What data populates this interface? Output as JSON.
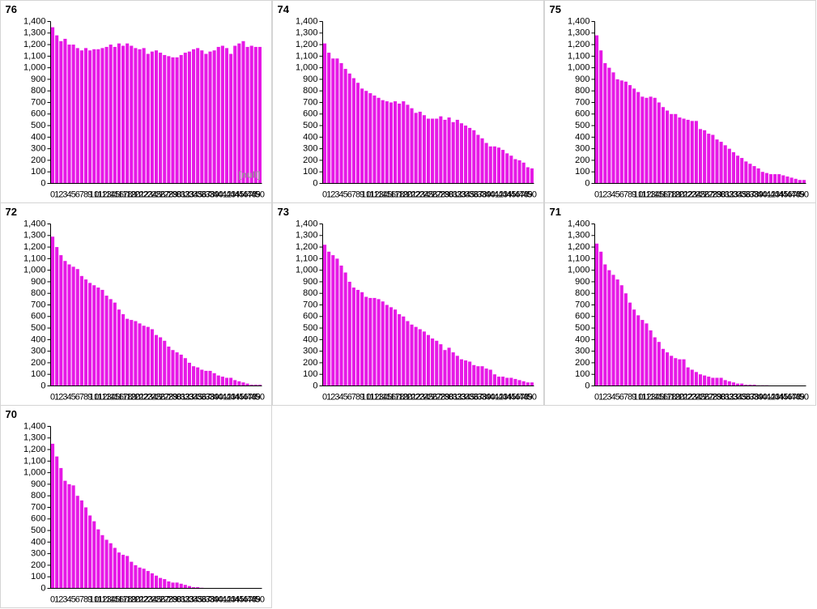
{
  "chart_data": [
    {
      "type": "bar",
      "title": "76",
      "annotation": "[null]",
      "color": "#e619e6",
      "categories": [
        0,
        1,
        2,
        3,
        4,
        5,
        6,
        7,
        8,
        9,
        10,
        11,
        12,
        13,
        14,
        15,
        16,
        17,
        18,
        19,
        20,
        21,
        22,
        23,
        24,
        25,
        26,
        27,
        28,
        29,
        30,
        31,
        32,
        33,
        34,
        35,
        36,
        37,
        38,
        39,
        40,
        41,
        42,
        43,
        44,
        45,
        46,
        47,
        48,
        49,
        50
      ],
      "values": [
        1350,
        1280,
        1230,
        1250,
        1200,
        1200,
        1170,
        1150,
        1170,
        1150,
        1160,
        1160,
        1170,
        1180,
        1200,
        1180,
        1210,
        1190,
        1210,
        1190,
        1170,
        1160,
        1170,
        1120,
        1140,
        1150,
        1130,
        1110,
        1100,
        1090,
        1090,
        1110,
        1130,
        1140,
        1160,
        1170,
        1150,
        1120,
        1140,
        1150,
        1180,
        1190,
        1170,
        1120,
        1190,
        1210,
        1230,
        1180,
        1190,
        1180,
        1180
      ],
      "ylim": [
        0,
        1400
      ],
      "yticks": [
        0,
        100,
        200,
        300,
        400,
        500,
        600,
        700,
        800,
        900,
        {
          "value": 1000,
          "label": "1,000"
        },
        {
          "value": 1100,
          "label": "1,100"
        },
        {
          "value": 1200,
          "label": "1,200"
        },
        {
          "value": 1300,
          "label": "1,300"
        },
        {
          "value": 1400,
          "label": "1,400"
        }
      ]
    },
    {
      "type": "bar",
      "title": "74",
      "color": "#e619e6",
      "categories": [
        0,
        1,
        2,
        3,
        4,
        5,
        6,
        7,
        8,
        9,
        10,
        11,
        12,
        13,
        14,
        15,
        16,
        17,
        18,
        19,
        20,
        21,
        22,
        23,
        24,
        25,
        26,
        27,
        28,
        29,
        30,
        31,
        32,
        33,
        34,
        35,
        36,
        37,
        38,
        39,
        40,
        41,
        42,
        43,
        44,
        45,
        46,
        47,
        48,
        49,
        50
      ],
      "values": [
        1210,
        1130,
        1080,
        1080,
        1040,
        990,
        950,
        910,
        870,
        820,
        800,
        780,
        760,
        740,
        720,
        710,
        700,
        710,
        690,
        710,
        680,
        650,
        610,
        620,
        590,
        560,
        560,
        560,
        580,
        550,
        570,
        530,
        550,
        520,
        500,
        480,
        460,
        420,
        390,
        350,
        320,
        320,
        310,
        290,
        260,
        240,
        210,
        200,
        180,
        140,
        130
      ],
      "ylim": [
        0,
        1400
      ],
      "yticks": [
        0,
        100,
        200,
        300,
        400,
        500,
        600,
        700,
        800,
        900,
        {
          "value": 1000,
          "label": "1,000"
        },
        {
          "value": 1100,
          "label": "1,100"
        },
        {
          "value": 1200,
          "label": "1,200"
        },
        {
          "value": 1300,
          "label": "1,300"
        },
        {
          "value": 1400,
          "label": "1,400"
        }
      ]
    },
    {
      "type": "bar",
      "title": "75",
      "color": "#e619e6",
      "categories": [
        0,
        1,
        2,
        3,
        4,
        5,
        6,
        7,
        8,
        9,
        10,
        11,
        12,
        13,
        14,
        15,
        16,
        17,
        18,
        19,
        20,
        21,
        22,
        23,
        24,
        25,
        26,
        27,
        28,
        29,
        30,
        31,
        32,
        33,
        34,
        35,
        36,
        37,
        38,
        39,
        40,
        41,
        42,
        43,
        44,
        45,
        46,
        47,
        48,
        49,
        50
      ],
      "values": [
        1280,
        1150,
        1040,
        1000,
        960,
        900,
        890,
        880,
        850,
        820,
        790,
        750,
        740,
        750,
        740,
        700,
        660,
        630,
        600,
        600,
        570,
        560,
        550,
        540,
        540,
        470,
        460,
        430,
        420,
        380,
        360,
        330,
        300,
        270,
        240,
        220,
        190,
        170,
        150,
        130,
        100,
        90,
        80,
        80,
        80,
        70,
        60,
        50,
        40,
        30,
        30
      ],
      "ylim": [
        0,
        1400
      ],
      "yticks": [
        0,
        100,
        200,
        300,
        400,
        500,
        600,
        700,
        800,
        900,
        {
          "value": 1000,
          "label": "1,000"
        },
        {
          "value": 1100,
          "label": "1,100"
        },
        {
          "value": 1200,
          "label": "1,200"
        },
        {
          "value": 1300,
          "label": "1,300"
        },
        {
          "value": 1400,
          "label": "1,400"
        }
      ]
    },
    {
      "type": "bar",
      "title": "72",
      "color": "#e619e6",
      "categories": [
        0,
        1,
        2,
        3,
        4,
        5,
        6,
        7,
        8,
        9,
        10,
        11,
        12,
        13,
        14,
        15,
        16,
        17,
        18,
        19,
        20,
        21,
        22,
        23,
        24,
        25,
        26,
        27,
        28,
        29,
        30,
        31,
        32,
        33,
        34,
        35,
        36,
        37,
        38,
        39,
        40,
        41,
        42,
        43,
        44,
        45,
        46,
        47,
        48,
        49,
        50
      ],
      "values": [
        1290,
        1200,
        1130,
        1080,
        1050,
        1030,
        1010,
        950,
        920,
        890,
        870,
        850,
        830,
        780,
        750,
        720,
        660,
        620,
        580,
        570,
        560,
        540,
        520,
        510,
        490,
        440,
        420,
        390,
        340,
        310,
        290,
        270,
        240,
        200,
        170,
        160,
        140,
        130,
        130,
        110,
        90,
        80,
        70,
        70,
        50,
        40,
        30,
        20,
        10,
        10,
        10
      ],
      "ylim": [
        0,
        1400
      ],
      "yticks": [
        0,
        100,
        200,
        300,
        400,
        500,
        600,
        700,
        800,
        900,
        {
          "value": 1000,
          "label": "1,000"
        },
        {
          "value": 1100,
          "label": "1,100"
        },
        {
          "value": 1200,
          "label": "1,200"
        },
        {
          "value": 1300,
          "label": "1,300"
        },
        {
          "value": 1400,
          "label": "1,400"
        }
      ]
    },
    {
      "type": "bar",
      "title": "73",
      "color": "#e619e6",
      "categories": [
        0,
        1,
        2,
        3,
        4,
        5,
        6,
        7,
        8,
        9,
        10,
        11,
        12,
        13,
        14,
        15,
        16,
        17,
        18,
        19,
        20,
        21,
        22,
        23,
        24,
        25,
        26,
        27,
        28,
        29,
        30,
        31,
        32,
        33,
        34,
        35,
        36,
        37,
        38,
        39,
        40,
        41,
        42,
        43,
        44,
        45,
        46,
        47,
        48,
        49,
        50
      ],
      "values": [
        1220,
        1160,
        1130,
        1100,
        1040,
        980,
        900,
        850,
        830,
        810,
        770,
        760,
        760,
        750,
        730,
        700,
        680,
        660,
        620,
        600,
        560,
        530,
        510,
        490,
        470,
        440,
        410,
        390,
        360,
        310,
        330,
        290,
        260,
        230,
        220,
        210,
        180,
        170,
        170,
        150,
        140,
        100,
        80,
        80,
        70,
        70,
        60,
        50,
        40,
        30,
        30
      ],
      "ylim": [
        0,
        1400
      ],
      "yticks": [
        0,
        100,
        200,
        300,
        400,
        500,
        600,
        700,
        800,
        900,
        {
          "value": 1000,
          "label": "1,000"
        },
        {
          "value": 1100,
          "label": "1,100"
        },
        {
          "value": 1200,
          "label": "1,200"
        },
        {
          "value": 1300,
          "label": "1,300"
        },
        {
          "value": 1400,
          "label": "1,400"
        }
      ]
    },
    {
      "type": "bar",
      "title": "71",
      "color": "#e619e6",
      "categories": [
        0,
        1,
        2,
        3,
        4,
        5,
        6,
        7,
        8,
        9,
        10,
        11,
        12,
        13,
        14,
        15,
        16,
        17,
        18,
        19,
        20,
        21,
        22,
        23,
        24,
        25,
        26,
        27,
        28,
        29,
        30,
        31,
        32,
        33,
        34,
        35,
        36,
        37,
        38,
        39,
        40,
        41,
        42,
        43,
        44,
        45,
        46,
        47,
        48,
        49,
        50
      ],
      "values": [
        1230,
        1160,
        1050,
        1000,
        960,
        920,
        870,
        800,
        720,
        660,
        610,
        570,
        540,
        480,
        420,
        380,
        320,
        290,
        260,
        240,
        230,
        230,
        160,
        140,
        120,
        100,
        90,
        80,
        70,
        70,
        70,
        50,
        40,
        30,
        20,
        20,
        10,
        10,
        10,
        5,
        5,
        5,
        0,
        0,
        0,
        0,
        0,
        0,
        0,
        0,
        0
      ],
      "ylim": [
        0,
        1400
      ],
      "yticks": [
        0,
        100,
        200,
        300,
        400,
        500,
        600,
        700,
        800,
        900,
        {
          "value": 1000,
          "label": "1,000"
        },
        {
          "value": 1100,
          "label": "1,100"
        },
        {
          "value": 1200,
          "label": "1,200"
        },
        {
          "value": 1300,
          "label": "1,300"
        },
        {
          "value": 1400,
          "label": "1,400"
        }
      ]
    },
    {
      "type": "bar",
      "title": "70",
      "color": "#e619e6",
      "categories": [
        0,
        1,
        2,
        3,
        4,
        5,
        6,
        7,
        8,
        9,
        10,
        11,
        12,
        13,
        14,
        15,
        16,
        17,
        18,
        19,
        20,
        21,
        22,
        23,
        24,
        25,
        26,
        27,
        28,
        29,
        30,
        31,
        32,
        33,
        34,
        35,
        36,
        37,
        38,
        39,
        40,
        41,
        42,
        43,
        44,
        45,
        46,
        47,
        48,
        49,
        50
      ],
      "values": [
        1250,
        1140,
        1040,
        930,
        900,
        890,
        800,
        760,
        700,
        630,
        580,
        510,
        460,
        420,
        390,
        350,
        310,
        290,
        280,
        230,
        200,
        180,
        170,
        150,
        130,
        110,
        90,
        80,
        60,
        50,
        50,
        40,
        30,
        20,
        10,
        10,
        5,
        0,
        0,
        0,
        0,
        0,
        0,
        0,
        0,
        0,
        0,
        0,
        0,
        0,
        0
      ],
      "ylim": [
        0,
        1400
      ],
      "yticks": [
        0,
        100,
        200,
        300,
        400,
        500,
        600,
        700,
        800,
        900,
        {
          "value": 1000,
          "label": "1,000"
        },
        {
          "value": 1100,
          "label": "1,100"
        },
        {
          "value": 1200,
          "label": "1,200"
        },
        {
          "value": 1300,
          "label": "1,300"
        },
        {
          "value": 1400,
          "label": "1,400"
        }
      ]
    }
  ]
}
